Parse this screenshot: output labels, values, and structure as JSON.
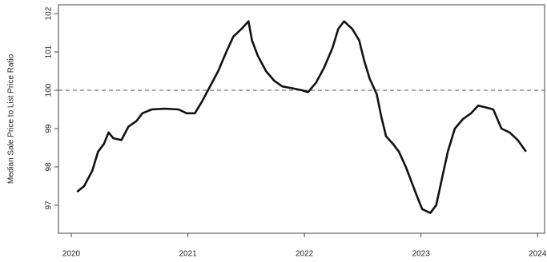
{
  "chart_data": {
    "type": "line",
    "y_label": "Median Sale Price to List Price Ratio",
    "x": [
      2020.05,
      2020.11,
      2020.18,
      2020.23,
      2020.28,
      2020.32,
      2020.36,
      2020.43,
      2020.49,
      2020.56,
      2020.61,
      2020.69,
      2020.8,
      2020.92,
      2020.99,
      2021.06,
      2021.12,
      2021.19,
      2021.26,
      2021.33,
      2021.39,
      2021.46,
      2021.52,
      2021.55,
      2021.6,
      2021.67,
      2021.74,
      2021.81,
      2021.9,
      2021.98,
      2022.03,
      2022.1,
      2022.17,
      2022.24,
      2022.29,
      2022.34,
      2022.41,
      2022.47,
      2022.51,
      2022.56,
      2022.62,
      2022.66,
      2022.7,
      2022.76,
      2022.81,
      2022.87,
      2022.92,
      2022.97,
      2023.01,
      2023.08,
      2023.13,
      2023.18,
      2023.23,
      2023.29,
      2023.36,
      2023.43,
      2023.49,
      2023.56,
      2023.62,
      2023.69,
      2023.76,
      2023.83,
      2023.9
    ],
    "series": [
      {
        "color": "#111111",
        "values": [
          97.35,
          97.5,
          97.9,
          98.4,
          98.6,
          98.9,
          98.75,
          98.7,
          99.05,
          99.2,
          99.4,
          99.5,
          99.52,
          99.5,
          99.4,
          99.4,
          99.7,
          100.1,
          100.5,
          101.0,
          101.4,
          101.6,
          101.8,
          101.3,
          100.9,
          100.5,
          100.25,
          100.1,
          100.05,
          100.0,
          99.95,
          100.2,
          100.6,
          101.1,
          101.6,
          101.8,
          101.6,
          101.3,
          100.8,
          100.3,
          99.9,
          99.3,
          98.8,
          98.6,
          98.4,
          98.0,
          97.6,
          97.2,
          96.9,
          96.8,
          97.0,
          97.7,
          98.4,
          99.0,
          99.25,
          99.4,
          99.6,
          99.55,
          99.5,
          99.0,
          98.9,
          98.7,
          98.4
        ]
      }
    ],
    "reference_line": 100,
    "xlim": [
      2019.89,
      2024.06
    ],
    "xticks": [
      2020,
      2021,
      2022,
      2023,
      2024
    ],
    "ylim": [
      96.27,
      102.23
    ],
    "yticks": [
      97,
      98,
      99,
      100,
      101,
      102
    ]
  }
}
